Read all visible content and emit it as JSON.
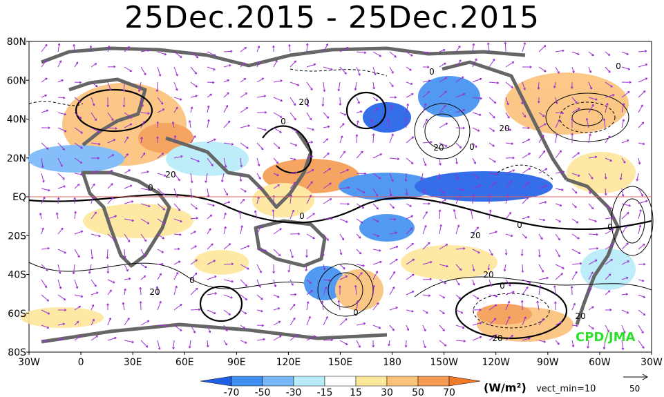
{
  "title": "25Dec.2015 - 25Dec.2015",
  "map": {
    "lat_labels": [
      "80N",
      "60N",
      "40N",
      "20N",
      "EQ",
      "20S",
      "40S",
      "60S",
      "80S"
    ],
    "lon_labels": [
      "30W",
      "0",
      "30E",
      "60E",
      "90E",
      "120E",
      "150E",
      "180",
      "150W",
      "120W",
      "90W",
      "60W",
      "30W"
    ],
    "contour_labels": [
      "0",
      "0",
      "0",
      "0",
      "0",
      "0",
      "0",
      "0",
      "0",
      "0",
      "0",
      "20",
      "20",
      "20",
      "20",
      "20",
      "20",
      "20",
      "20",
      "20"
    ]
  },
  "legend": {
    "ticks": [
      "-70",
      "-50",
      "-30",
      "-15",
      "15",
      "30",
      "50",
      "70"
    ],
    "colors": [
      "#1f5fe6",
      "#3f8ff0",
      "#78b8f8",
      "#b8ecfa",
      "#ffffff",
      "#fde79a",
      "#fbc27a",
      "#f59b52",
      "#ef7a2a"
    ],
    "units": "(W/m²)",
    "vect_min": "vect_min=10",
    "ref_vector": "50"
  },
  "credit": "CPD/JMA",
  "colors": {
    "land": "#666666",
    "contour": "#000000",
    "arrow": "#9b30d0"
  }
}
